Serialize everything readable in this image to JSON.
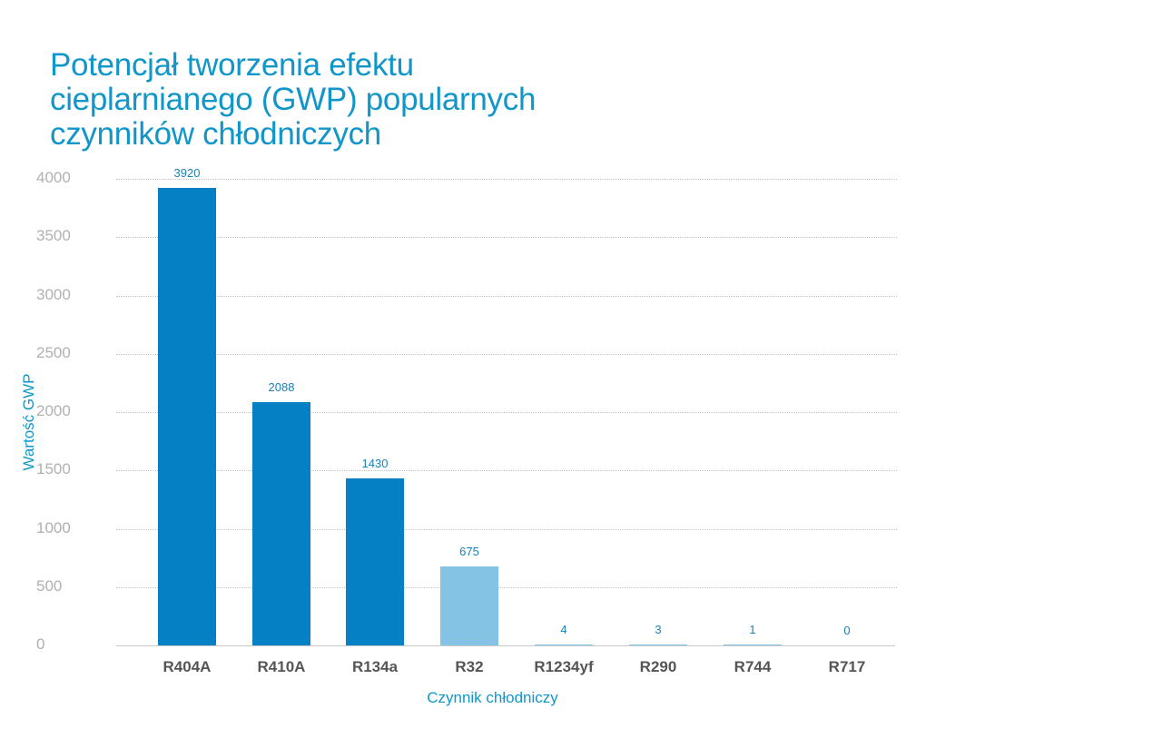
{
  "title_lines": [
    "Potencjał tworzenia efektu",
    "cieplarnianego (GWP) popularnych",
    "czynników chłodniczych"
  ],
  "chart_data": {
    "type": "bar",
    "title": "Potencjał tworzenia efektu cieplarnianego (GWP) popularnych czynników chłodniczych",
    "xlabel": "Czynnik chłodniczy",
    "ylabel": "Wartość GWP",
    "categories": [
      "R404A",
      "R410A",
      "R134a",
      "R32",
      "R1234yf",
      "R290",
      "R744",
      "R717"
    ],
    "values": [
      3920,
      2088,
      1430,
      675,
      4,
      3,
      1,
      0
    ],
    "value_labels": [
      "3920",
      "2088",
      "1430",
      "675",
      "4",
      "3",
      "1",
      "0"
    ],
    "bar_colors": [
      "#0580c4",
      "#0580c4",
      "#0580c4",
      "#85c3e5",
      "#85c3e5",
      "#85c3e5",
      "#85c3e5",
      "#85c3e5"
    ],
    "ylim": [
      0,
      4000
    ],
    "yticks": [
      0,
      500,
      1000,
      1500,
      2000,
      2500,
      3000,
      3500,
      4000
    ],
    "ytick_labels": [
      "0",
      "500",
      "1000",
      "1500",
      "2000",
      "2500",
      "3000",
      "3500",
      "4000"
    ],
    "grid": true,
    "legend": null
  },
  "colors": {
    "title": "#1196c9",
    "dark_bar": "#0580c4",
    "light_bar": "#85c3e5",
    "value_label": "#1a82b8",
    "tick": "#b0b0b0",
    "category": "#555555"
  }
}
